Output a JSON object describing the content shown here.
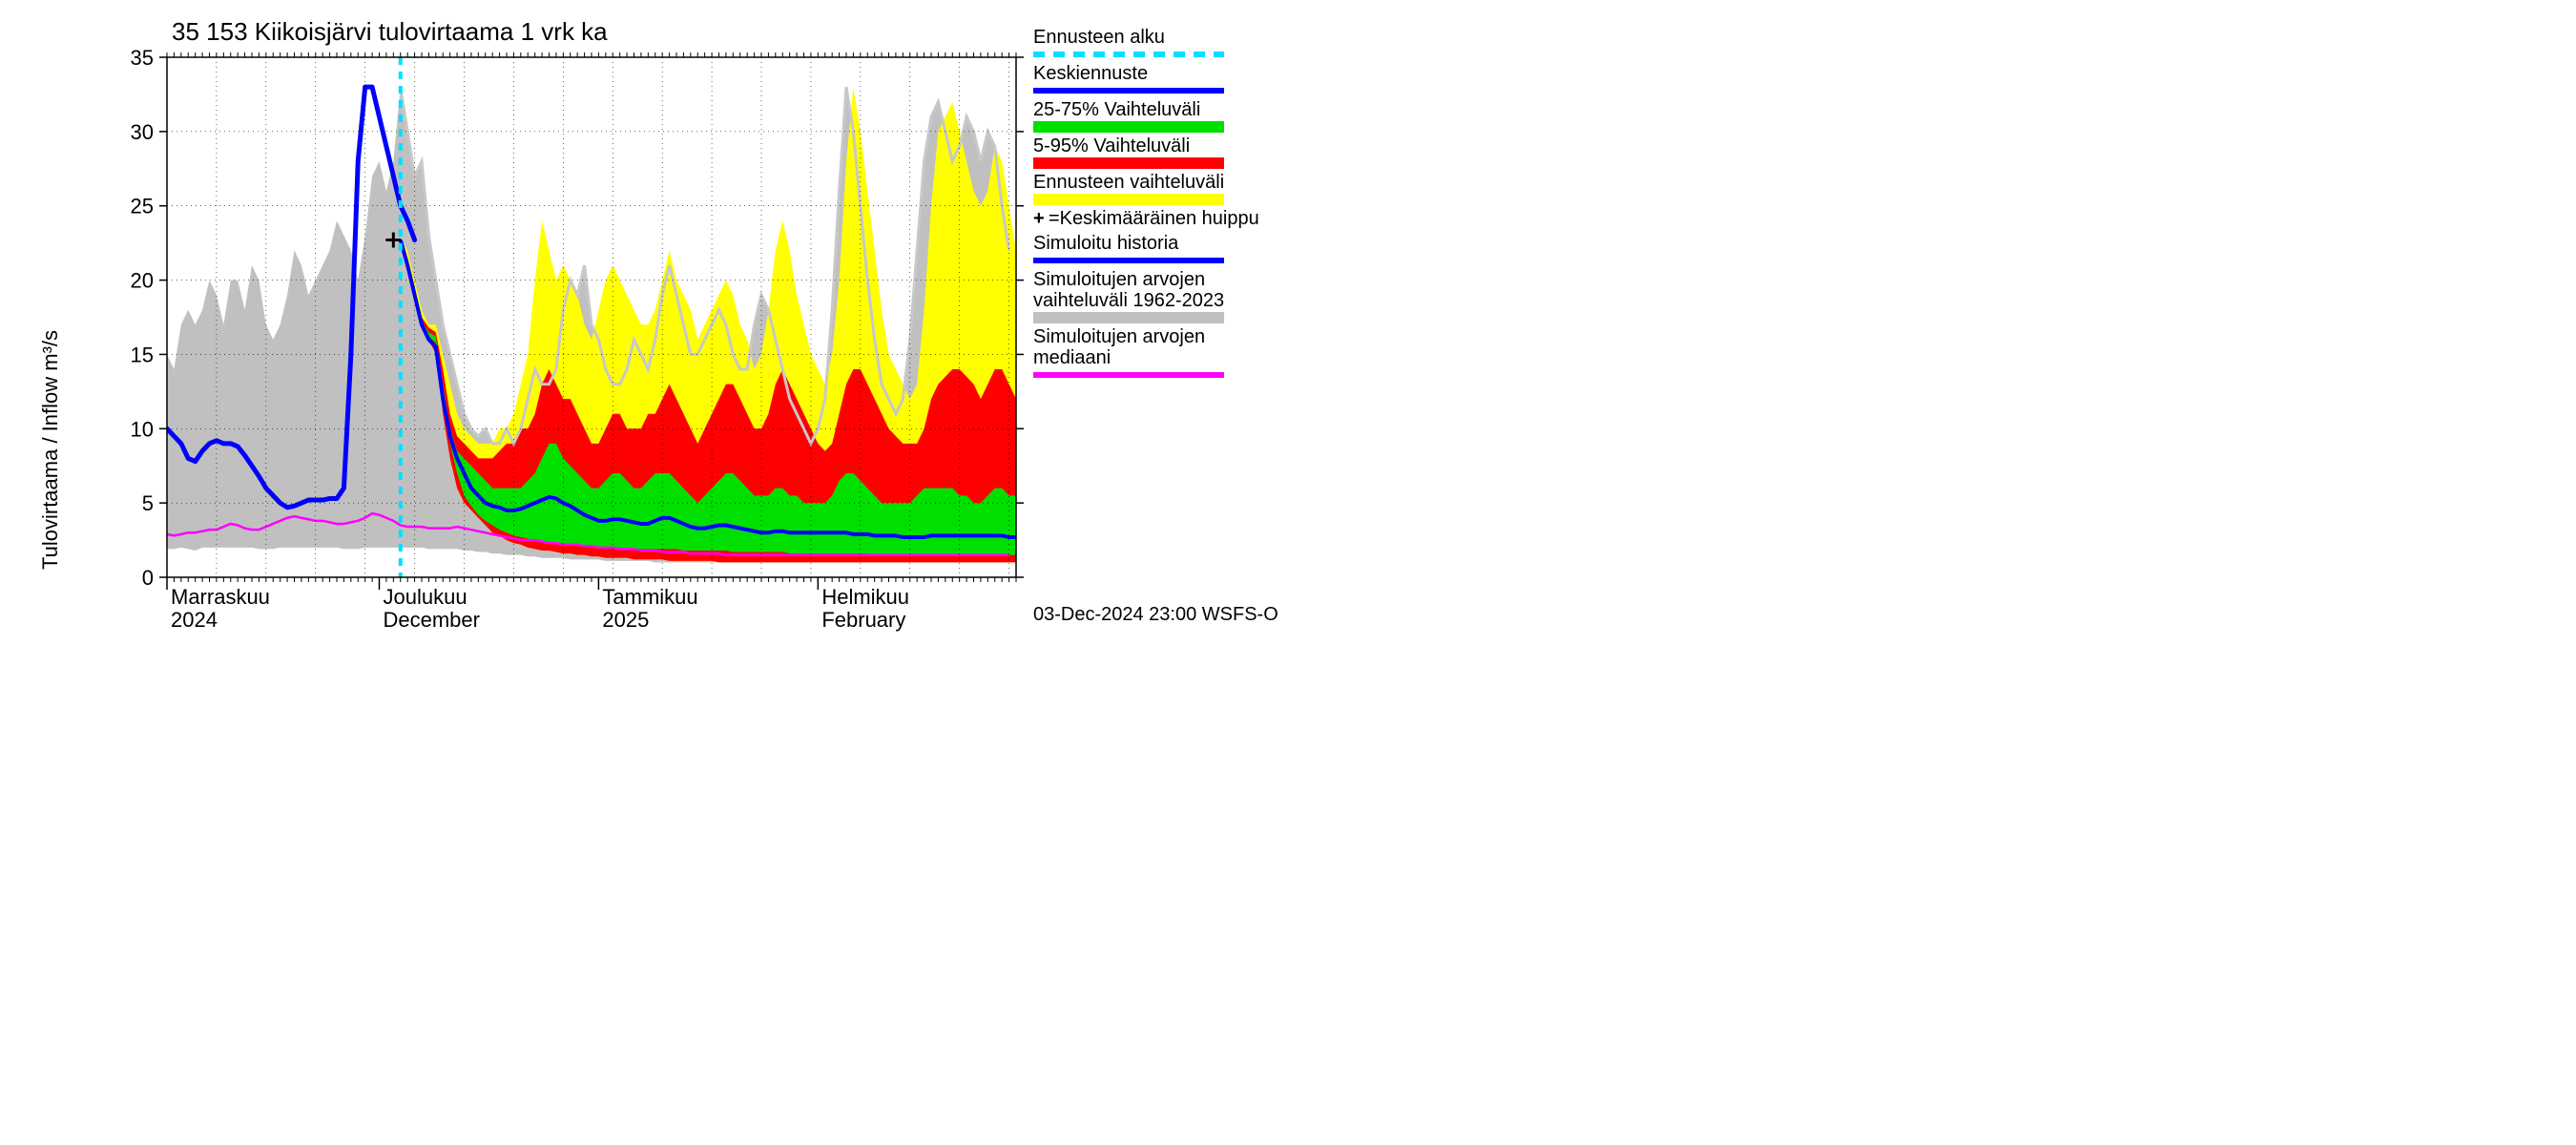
{
  "chart": {
    "type": "area-line-forecast",
    "title": "35 153 Kiikoisjärvi tulovirtaama 1 vrk ka",
    "ylabel": "Tulovirtaama / Inflow   m³/s",
    "ylim": [
      0,
      35
    ],
    "ytick_step": 5,
    "yticks": [
      0,
      5,
      10,
      15,
      20,
      25,
      30,
      35
    ],
    "x_days": 120,
    "x_months": [
      {
        "label_fi": "Marraskuu",
        "label_en": "2024",
        "day": 0
      },
      {
        "label_fi": "Joulukuu",
        "label_en": "December",
        "day": 30
      },
      {
        "label_fi": "Tammikuu",
        "label_en": "2025",
        "day": 61
      },
      {
        "label_fi": "Helmikuu",
        "label_en": "February",
        "day": 92
      }
    ],
    "forecast_start_day": 33,
    "background_color": "#ffffff",
    "grid_color": "#000000",
    "grid_minor_color": "#0c0c0c",
    "axis_fontsize": 22,
    "title_fontsize": 26,
    "footer": "03-Dec-2024 23:00 WSFS-O",
    "colors": {
      "yellow": "#ffff00",
      "red": "#ff0000",
      "green": "#00e000",
      "blue": "#0000ff",
      "cyan": "#00e0ff",
      "magenta": "#ff00ff",
      "gray": "#c0c0c0",
      "ltgray": "#c8c8c8"
    },
    "line_widths": {
      "history_blue": 5,
      "forecast_blue": 4,
      "median_magenta": 2.5,
      "gray_line": 3,
      "cyan_dash": 4
    },
    "legend": {
      "items": [
        {
          "key": "ennusteen_alku",
          "label": "Ennusteen alku",
          "type": "dash",
          "color": "#00e0ff"
        },
        {
          "key": "keskiennuste",
          "label": "Keskiennuste",
          "type": "line",
          "color": "#0000ff"
        },
        {
          "key": "vaihtelu_25_75",
          "label": "25-75% Vaihteluväli",
          "type": "area",
          "color": "#00e000"
        },
        {
          "key": "vaihtelu_5_95",
          "label": "5-95% Vaihteluväli",
          "type": "area",
          "color": "#ff0000"
        },
        {
          "key": "enn_vaihtelu",
          "label": "Ennusteen vaihteluväli",
          "type": "area",
          "color": "#ffff00"
        },
        {
          "key": "keskim_huippu",
          "label": "=Keskimääräinen huippu",
          "type": "plus",
          "color": "#000000",
          "label2": ""
        },
        {
          "key": "sim_historia",
          "label": "Simuloitu historia",
          "type": "line",
          "color": "#0000ff"
        },
        {
          "key": "sim_arvo_vaiht",
          "label": "Simuloitujen arvojen",
          "label2": "vaihteluväli 1962-2023",
          "type": "area",
          "color": "#c0c0c0"
        },
        {
          "key": "sim_arvo_med",
          "label": "Simuloitujen arvojen",
          "label2": "mediaani",
          "type": "line",
          "color": "#ff00ff"
        }
      ]
    },
    "peak_marker": {
      "day": 32,
      "value": 22.7
    },
    "series": {
      "gray_band_upper": [
        15,
        14,
        17,
        18,
        17,
        18,
        20,
        19,
        17,
        20,
        20,
        18,
        21,
        20,
        17,
        16,
        17,
        19,
        22,
        21,
        19,
        20,
        21,
        22,
        24,
        23,
        22,
        20,
        23,
        27,
        28,
        26,
        28,
        33,
        30,
        27,
        28,
        23,
        20,
        17,
        15,
        13,
        11,
        10,
        9.5,
        10,
        9,
        9,
        10,
        9,
        10,
        12,
        14,
        13,
        13,
        14,
        18,
        20,
        19,
        21,
        17,
        16,
        14,
        13,
        13,
        14,
        16,
        15,
        14,
        16,
        19,
        21,
        19,
        17,
        15,
        15,
        16,
        17,
        18,
        17,
        15,
        14,
        14,
        17,
        19,
        18,
        16,
        14,
        12,
        11,
        10,
        9,
        10,
        12,
        18,
        26,
        33,
        30,
        25,
        20,
        16,
        13,
        12,
        11,
        12,
        16,
        22,
        28,
        31,
        32,
        30,
        28,
        29,
        31,
        30,
        28,
        30,
        29,
        25,
        22
      ],
      "gray_band_lower": [
        1.9,
        1.9,
        2,
        1.9,
        1.8,
        2,
        2,
        2,
        2,
        2,
        2,
        2,
        2,
        1.9,
        1.9,
        1.9,
        2,
        2,
        2,
        2,
        2,
        2,
        2,
        2,
        2,
        1.9,
        1.9,
        1.9,
        2,
        2,
        2,
        2,
        2,
        2,
        2,
        2,
        2,
        1.9,
        1.9,
        1.9,
        1.9,
        1.9,
        1.8,
        1.8,
        1.7,
        1.7,
        1.6,
        1.6,
        1.5,
        1.5,
        1.5,
        1.4,
        1.4,
        1.3,
        1.3,
        1.3,
        1.3,
        1.2,
        1.2,
        1.2,
        1.2,
        1.2,
        1.1,
        1.1,
        1.1,
        1.1,
        1.1,
        1.1,
        1.1,
        1,
        1,
        1,
        1,
        1,
        1,
        1,
        1,
        1,
        1,
        1,
        1,
        1,
        1,
        1,
        1,
        1,
        1,
        1,
        1,
        1,
        1,
        1,
        1,
        1,
        1,
        1,
        1,
        1,
        1,
        1,
        1,
        1,
        1,
        1,
        1,
        1,
        1,
        1,
        1,
        1,
        1,
        1,
        1,
        1,
        1,
        1,
        1,
        1,
        1,
        1
      ],
      "yellow_upper": [
        22.7,
        22,
        20,
        18,
        17,
        17,
        15,
        13,
        11,
        10,
        9.5,
        9,
        9,
        9,
        10,
        10,
        11,
        13,
        15,
        20,
        24,
        22,
        20,
        21,
        20,
        19,
        17,
        16,
        18,
        20,
        21,
        20,
        19,
        18,
        17,
        17,
        18,
        20,
        22,
        20,
        19,
        18,
        16,
        17,
        18,
        19,
        20,
        19,
        17,
        16,
        14,
        15,
        18,
        22,
        24,
        22,
        19,
        17,
        15,
        14,
        13,
        15,
        20,
        28,
        33,
        30,
        26,
        22,
        18,
        15,
        14,
        13,
        12,
        13,
        18,
        25,
        30,
        31,
        32,
        30,
        28,
        26,
        25,
        26,
        29,
        28,
        25,
        22
      ],
      "yellow_lower": [
        22.7,
        21,
        19,
        17,
        16,
        15,
        11,
        8,
        6,
        5,
        4.5,
        4,
        3.5,
        3,
        2.8,
        2.5,
        2.3,
        2.2,
        2,
        1.9,
        1.8,
        1.8,
        1.7,
        1.6,
        1.6,
        1.5,
        1.5,
        1.4,
        1.4,
        1.3,
        1.3,
        1.3,
        1.3,
        1.2,
        1.2,
        1.2,
        1.2,
        1.2,
        1.1,
        1.1,
        1.1,
        1.1,
        1.1,
        1.1,
        1.1,
        1,
        1,
        1,
        1,
        1,
        1,
        1,
        1,
        1,
        1,
        1,
        1,
        1,
        1,
        1,
        1,
        1,
        1,
        1,
        1,
        1,
        1,
        1,
        1,
        1,
        1,
        1,
        1,
        1,
        1,
        1,
        1,
        1,
        1,
        1,
        1,
        1,
        1,
        1,
        1,
        1,
        1,
        1
      ],
      "red_upper": [
        22.7,
        21.5,
        19.5,
        17.5,
        16.8,
        16.5,
        14,
        11,
        9.5,
        9,
        8.5,
        8,
        8,
        8,
        8.5,
        9,
        9,
        10,
        10,
        11,
        13,
        14,
        13,
        12,
        12,
        11,
        10,
        9,
        9,
        10,
        11,
        11,
        10,
        10,
        10,
        11,
        11,
        12,
        13,
        12,
        11,
        10,
        9,
        10,
        11,
        12,
        13,
        13,
        12,
        11,
        10,
        10,
        11,
        13,
        14,
        13,
        12,
        11,
        10,
        9,
        8.5,
        9,
        11,
        13,
        14,
        14,
        13,
        12,
        11,
        10,
        9.5,
        9,
        9,
        9,
        10,
        12,
        13,
        13.5,
        14,
        14,
        13.5,
        13,
        12,
        13,
        14,
        14,
        13,
        12
      ],
      "red_lower": [
        22.7,
        21,
        19,
        17,
        16,
        15,
        11,
        8,
        6,
        5,
        4.5,
        4,
        3.5,
        3,
        2.8,
        2.5,
        2.3,
        2.2,
        2,
        1.9,
        1.8,
        1.8,
        1.7,
        1.6,
        1.6,
        1.5,
        1.5,
        1.4,
        1.4,
        1.3,
        1.3,
        1.3,
        1.3,
        1.2,
        1.2,
        1.2,
        1.2,
        1.2,
        1.1,
        1.1,
        1.1,
        1.1,
        1.1,
        1.1,
        1.1,
        1,
        1,
        1,
        1,
        1,
        1,
        1,
        1,
        1,
        1,
        1,
        1,
        1,
        1,
        1,
        1,
        1,
        1,
        1,
        1,
        1,
        1,
        1,
        1,
        1,
        1,
        1,
        1,
        1,
        1,
        1,
        1,
        1,
        1,
        1,
        1,
        1,
        1,
        1,
        1,
        1,
        1,
        1
      ],
      "green_upper": [
        22.7,
        21.2,
        19.2,
        17.2,
        16.5,
        16.2,
        13,
        10,
        8.5,
        8,
        7.5,
        7,
        6.5,
        6,
        6,
        6,
        6,
        6,
        6.5,
        7,
        8,
        9,
        9,
        8,
        7.5,
        7,
        6.5,
        6,
        6,
        6.5,
        7,
        7,
        6.5,
        6,
        6,
        6.5,
        7,
        7,
        7,
        6.5,
        6,
        5.5,
        5,
        5.5,
        6,
        6.5,
        7,
        7,
        6.5,
        6,
        5.5,
        5.5,
        5.5,
        6,
        6,
        5.5,
        5.5,
        5,
        5,
        5,
        5,
        5.5,
        6.5,
        7,
        7,
        6.5,
        6,
        5.5,
        5,
        5,
        5,
        5,
        5,
        5.5,
        6,
        6,
        6,
        6,
        6,
        5.5,
        5.5,
        5,
        5,
        5.5,
        6,
        6,
        5.5,
        5.5
      ],
      "green_lower": [
        22.7,
        21.1,
        19.1,
        17.1,
        16.2,
        15.8,
        12,
        9,
        7,
        5.5,
        4.8,
        4.2,
        3.8,
        3.5,
        3.2,
        3,
        2.8,
        2.7,
        2.6,
        2.5,
        2.4,
        2.4,
        2.3,
        2.3,
        2.2,
        2.2,
        2.1,
        2.1,
        2,
        2,
        2,
        2,
        2,
        1.9,
        1.9,
        1.9,
        1.9,
        1.9,
        1.9,
        1.9,
        1.8,
        1.8,
        1.8,
        1.8,
        1.8,
        1.8,
        1.8,
        1.7,
        1.7,
        1.7,
        1.7,
        1.7,
        1.7,
        1.7,
        1.7,
        1.6,
        1.6,
        1.6,
        1.6,
        1.6,
        1.6,
        1.6,
        1.6,
        1.6,
        1.6,
        1.6,
        1.6,
        1.5,
        1.5,
        1.5,
        1.5,
        1.5,
        1.5,
        1.5,
        1.5,
        1.5,
        1.5,
        1.5,
        1.5,
        1.5,
        1.5,
        1.5,
        1.5,
        1.5,
        1.5,
        1.5,
        1.5,
        1.5
      ],
      "blue_history": [
        10,
        9.5,
        9,
        8,
        7.8,
        8.5,
        9,
        9.2,
        9,
        9,
        8.8,
        8.2,
        7.5,
        6.8,
        6,
        5.5,
        5,
        4.7,
        4.8,
        5,
        5.2,
        5.2,
        5.2,
        5.3,
        5.3,
        6,
        15,
        28,
        33,
        33,
        31,
        29,
        27,
        25,
        24,
        22.7
      ],
      "blue_forecast": [
        22.7,
        21,
        19,
        17,
        16,
        15.5,
        12,
        9.5,
        8,
        7,
        6,
        5.5,
        5,
        4.8,
        4.7,
        4.5,
        4.5,
        4.6,
        4.8,
        5,
        5.2,
        5.4,
        5.3,
        5,
        4.8,
        4.5,
        4.2,
        4,
        3.8,
        3.8,
        3.9,
        3.9,
        3.8,
        3.7,
        3.6,
        3.6,
        3.8,
        4,
        4,
        3.8,
        3.6,
        3.4,
        3.3,
        3.3,
        3.4,
        3.5,
        3.5,
        3.4,
        3.3,
        3.2,
        3.1,
        3,
        3,
        3.1,
        3.1,
        3,
        3,
        3,
        3,
        3,
        3,
        3,
        3,
        3,
        2.9,
        2.9,
        2.9,
        2.8,
        2.8,
        2.8,
        2.8,
        2.7,
        2.7,
        2.7,
        2.7,
        2.8,
        2.8,
        2.8,
        2.8,
        2.8,
        2.8,
        2.8,
        2.8,
        2.8,
        2.8,
        2.8,
        2.7,
        2.7
      ],
      "magenta_median": [
        2.9,
        2.8,
        2.9,
        3,
        3,
        3.1,
        3.2,
        3.2,
        3.4,
        3.6,
        3.5,
        3.3,
        3.2,
        3.2,
        3.4,
        3.6,
        3.8,
        4,
        4.1,
        4,
        3.9,
        3.8,
        3.8,
        3.7,
        3.6,
        3.6,
        3.7,
        3.8,
        4,
        4.3,
        4.2,
        4,
        3.8,
        3.5,
        3.4,
        3.4,
        3.4,
        3.3,
        3.3,
        3.3,
        3.3,
        3.4,
        3.3,
        3.2,
        3.1,
        3,
        2.9,
        2.8,
        2.7,
        2.6,
        2.5,
        2.5,
        2.5,
        2.4,
        2.3,
        2.3,
        2.2,
        2.2,
        2.2,
        2.1,
        2.1,
        2,
        2,
        2,
        1.9,
        1.9,
        1.9,
        1.8,
        1.8,
        1.8,
        1.7,
        1.7,
        1.7,
        1.7,
        1.6,
        1.6,
        1.6,
        1.6,
        1.6,
        1.5,
        1.5,
        1.5,
        1.5,
        1.5,
        1.5,
        1.5,
        1.5,
        1.5,
        1.5,
        1.5,
        1.5,
        1.5,
        1.5,
        1.5,
        1.5,
        1.5,
        1.5,
        1.5,
        1.5,
        1.5,
        1.5,
        1.5,
        1.5,
        1.5,
        1.5,
        1.5,
        1.5,
        1.5,
        1.5,
        1.5,
        1.5,
        1.5,
        1.5,
        1.5,
        1.5,
        1.5,
        1.5,
        1.5,
        1.5,
        1.5
      ]
    }
  }
}
